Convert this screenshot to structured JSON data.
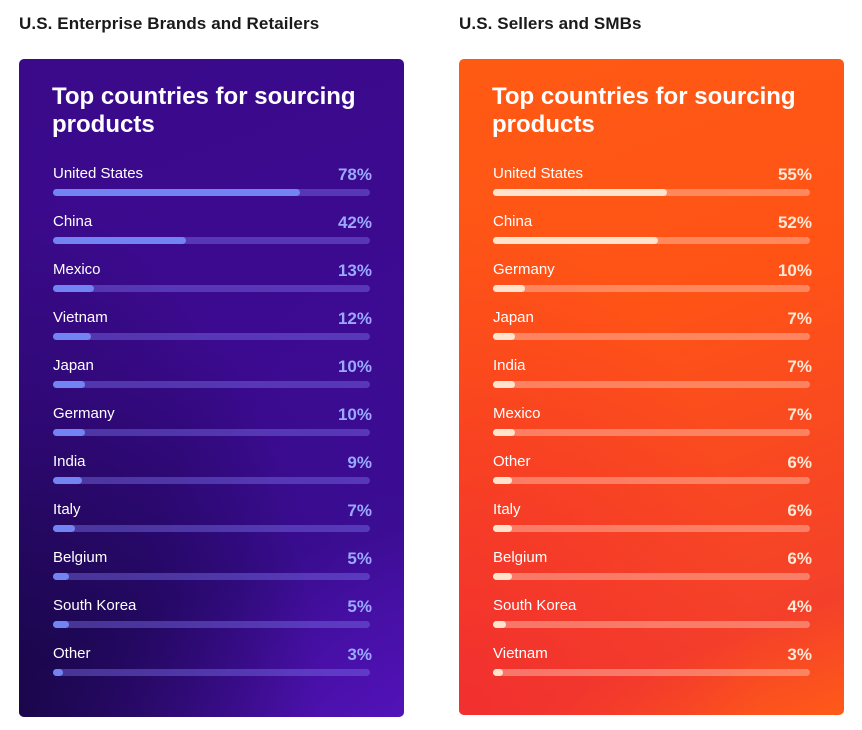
{
  "chart_data": [
    {
      "type": "bar",
      "orientation": "horizontal",
      "section_title": "U.S. Enterprise Brands and Retailers",
      "title": "Top countries for sourcing products",
      "categories": [
        "United States",
        "China",
        "Mexico",
        "Vietnam",
        "Japan",
        "Germany",
        "India",
        "Italy",
        "Belgium",
        "South Korea",
        "Other"
      ],
      "values": [
        78,
        42,
        13,
        12,
        10,
        10,
        9,
        7,
        5,
        5,
        3
      ],
      "labels": [
        "78%",
        "42%",
        "13%",
        "12%",
        "10%",
        "10%",
        "9%",
        "7%",
        "5%",
        "5%",
        "3%"
      ],
      "unit": "%",
      "xlim": [
        0,
        100
      ],
      "colors": {
        "background": "#3a0a8a",
        "fill": "#7184f2",
        "value_text": "#9aa8ff"
      }
    },
    {
      "type": "bar",
      "orientation": "horizontal",
      "section_title": "U.S. Sellers and SMBs",
      "title": "Top countries for sourcing products",
      "categories": [
        "United States",
        "China",
        "Germany",
        "Japan",
        "India",
        "Mexico",
        "Other",
        "Italy",
        "Belgium",
        "South Korea",
        "Vietnam"
      ],
      "values": [
        55,
        52,
        10,
        7,
        7,
        7,
        6,
        6,
        6,
        4,
        3
      ],
      "labels": [
        "55%",
        "52%",
        "10%",
        "7%",
        "7%",
        "7%",
        "6%",
        "6%",
        "6%",
        "4%",
        "3%"
      ],
      "unit": "%",
      "xlim": [
        0,
        100
      ],
      "colors": {
        "background": "#ff5316",
        "fill": "#ffe3cc",
        "value_text": "#ffe8d6"
      }
    }
  ]
}
